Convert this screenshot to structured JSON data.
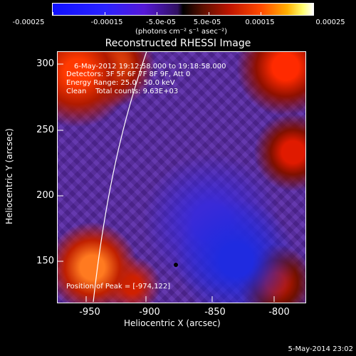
{
  "colorbar": {
    "ticks": [
      "-0.00025",
      "-0.00015",
      "-5.0e-05",
      "5.0e-05",
      "0.00015",
      "0.00025"
    ],
    "unit": "(photons cm⁻² s⁻¹ asec⁻²)"
  },
  "title": "Reconstructed RHESSI Image",
  "info": {
    "time_range": "6-May-2012 19:12:58.000 to 19:18:58.000",
    "detectors": "Detectors: 3F 5F 6F 7F 8F 9F, Att 0",
    "energy": "Energy Range: 25.0 - 50.0 keV",
    "clean": "Clean    Total counts: 9.63E+03"
  },
  "peak": "Position of Peak = [-974,122]",
  "axes": {
    "xlabel": "Heliocentric X (arcsec)",
    "ylabel": "Heliocentric Y (arcsec)",
    "xticks": [
      "-950",
      "-900",
      "-850",
      "-800"
    ],
    "yticks": [
      "300",
      "250",
      "200",
      "150"
    ]
  },
  "footer_date": "5-May-2014 23:02"
}
